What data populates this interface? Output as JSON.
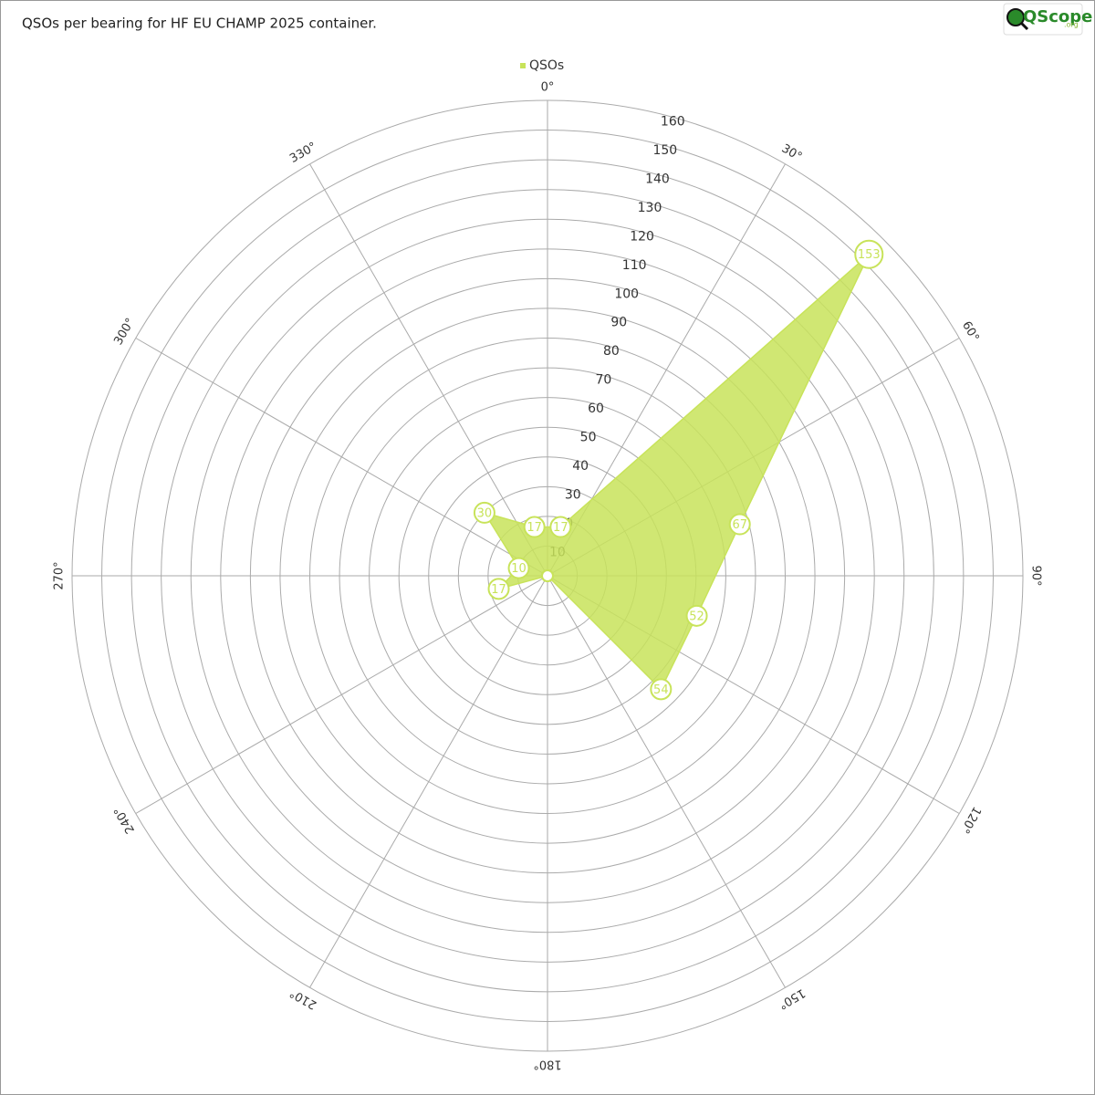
{
  "chart_data": {
    "type": "polar",
    "title": "QSOs per bearing for HF EU CHAMP 2025 container.",
    "logo": {
      "text": "QScope",
      "suffix": ".org"
    },
    "x": [
      15,
      45,
      75,
      105,
      135,
      165,
      195,
      225,
      255,
      285,
      315,
      345
    ],
    "series": [
      {
        "name": "QSOs",
        "color": "#c8e35a",
        "values": [
          17,
          153,
          67,
          52,
          54,
          0,
          0,
          0,
          17,
          10,
          30,
          17
        ]
      }
    ],
    "xlim": [
      0,
      360
    ],
    "xticks": [
      {
        "value": 0,
        "label": "0°"
      },
      {
        "value": 30,
        "label": "30°"
      },
      {
        "value": 60,
        "label": "60°"
      },
      {
        "value": 90,
        "label": "90°"
      },
      {
        "value": 120,
        "label": "120°"
      },
      {
        "value": 150,
        "label": "150°"
      },
      {
        "value": 180,
        "label": "180°"
      },
      {
        "value": 210,
        "label": "210°"
      },
      {
        "value": 240,
        "label": "240°"
      },
      {
        "value": 270,
        "label": "270°"
      },
      {
        "value": 300,
        "label": "300°"
      },
      {
        "value": 330,
        "label": "330°"
      }
    ],
    "ylim": [
      0,
      160
    ],
    "yticks": [
      10,
      20,
      30,
      40,
      50,
      60,
      70,
      80,
      90,
      100,
      110,
      120,
      130,
      140,
      150,
      160
    ],
    "grid": true,
    "legend": "top"
  }
}
